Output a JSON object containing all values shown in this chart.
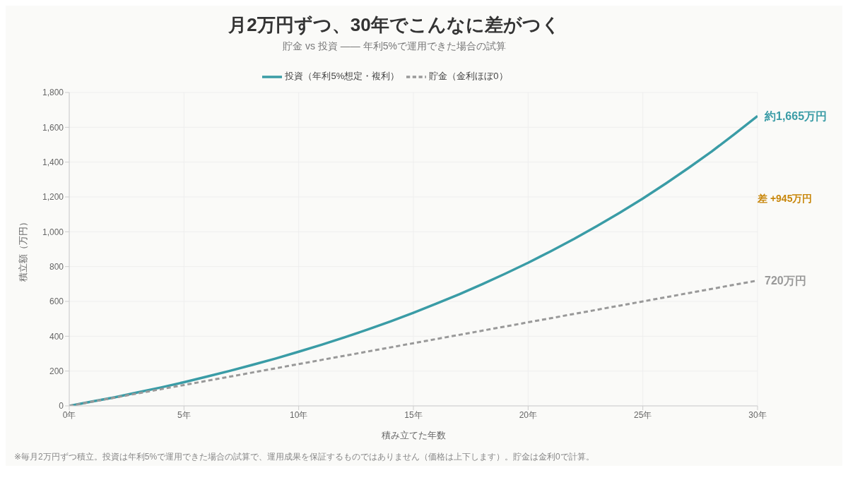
{
  "chart_data": {
    "type": "line",
    "title": "月2万円ずつ、30年でこんなに差がつく",
    "subtitle": "貯金 vs 投資 —— 年利5%で運用できた場合の試算",
    "xlabel": "積み立てた年数",
    "ylabel": "積立額（万円）",
    "x": [
      0,
      1,
      2,
      3,
      4,
      5,
      6,
      7,
      8,
      9,
      10,
      11,
      12,
      13,
      14,
      15,
      16,
      17,
      18,
      19,
      20,
      21,
      22,
      23,
      24,
      25,
      26,
      27,
      28,
      29,
      30
    ],
    "series": [
      {
        "name": "投資（年利5%想定・複利）",
        "color": "#3a9ca6",
        "line_style": "solid",
        "values": [
          0,
          25,
          50,
          78,
          106,
          136,
          168,
          201,
          236,
          272,
          311,
          351,
          394,
          438,
          485,
          535,
          587,
          641,
          699,
          759,
          822,
          889,
          959,
          1033,
          1110,
          1191,
          1277,
          1367,
          1461,
          1561,
          1665
        ]
      },
      {
        "name": "貯金（金利ほぼ0）",
        "color": "#999999",
        "line_style": "dashed",
        "values": [
          0,
          24,
          48,
          72,
          96,
          120,
          144,
          168,
          192,
          216,
          240,
          264,
          288,
          312,
          336,
          360,
          384,
          408,
          432,
          456,
          480,
          504,
          528,
          552,
          576,
          600,
          624,
          648,
          672,
          696,
          720
        ]
      }
    ],
    "xlim": [
      0,
      30
    ],
    "xticks": [
      {
        "value": 0,
        "label": "0年"
      },
      {
        "value": 5,
        "label": "5年"
      },
      {
        "value": 10,
        "label": "10年"
      },
      {
        "value": 15,
        "label": "15年"
      },
      {
        "value": 20,
        "label": "20年"
      },
      {
        "value": 25,
        "label": "25年"
      },
      {
        "value": 30,
        "label": "30年"
      }
    ],
    "ylim": [
      0,
      1800
    ],
    "yticks": [
      0,
      200,
      400,
      600,
      800,
      {
        "value": 1000,
        "label": "1,000"
      },
      {
        "value": 1200,
        "label": "1,200"
      },
      {
        "value": 1400,
        "label": "1,400"
      },
      {
        "value": 1600,
        "label": "1,600"
      },
      {
        "value": 1800,
        "label": "1,800"
      }
    ],
    "grid": true,
    "legend": "top",
    "marker": "none",
    "annotations": [
      {
        "text": "約1,665万円",
        "x": 30,
        "y": 1665
      },
      "差 +945万円",
      {
        "text": "720万円",
        "x": 30,
        "y": 720
      },
      "※毎月2万円ずつ積立。投資は年利5%で運用できた場合の試算で、運用成果を保証するものではありません（価格は上下します）。貯金は金利0で計算。"
    ]
  }
}
